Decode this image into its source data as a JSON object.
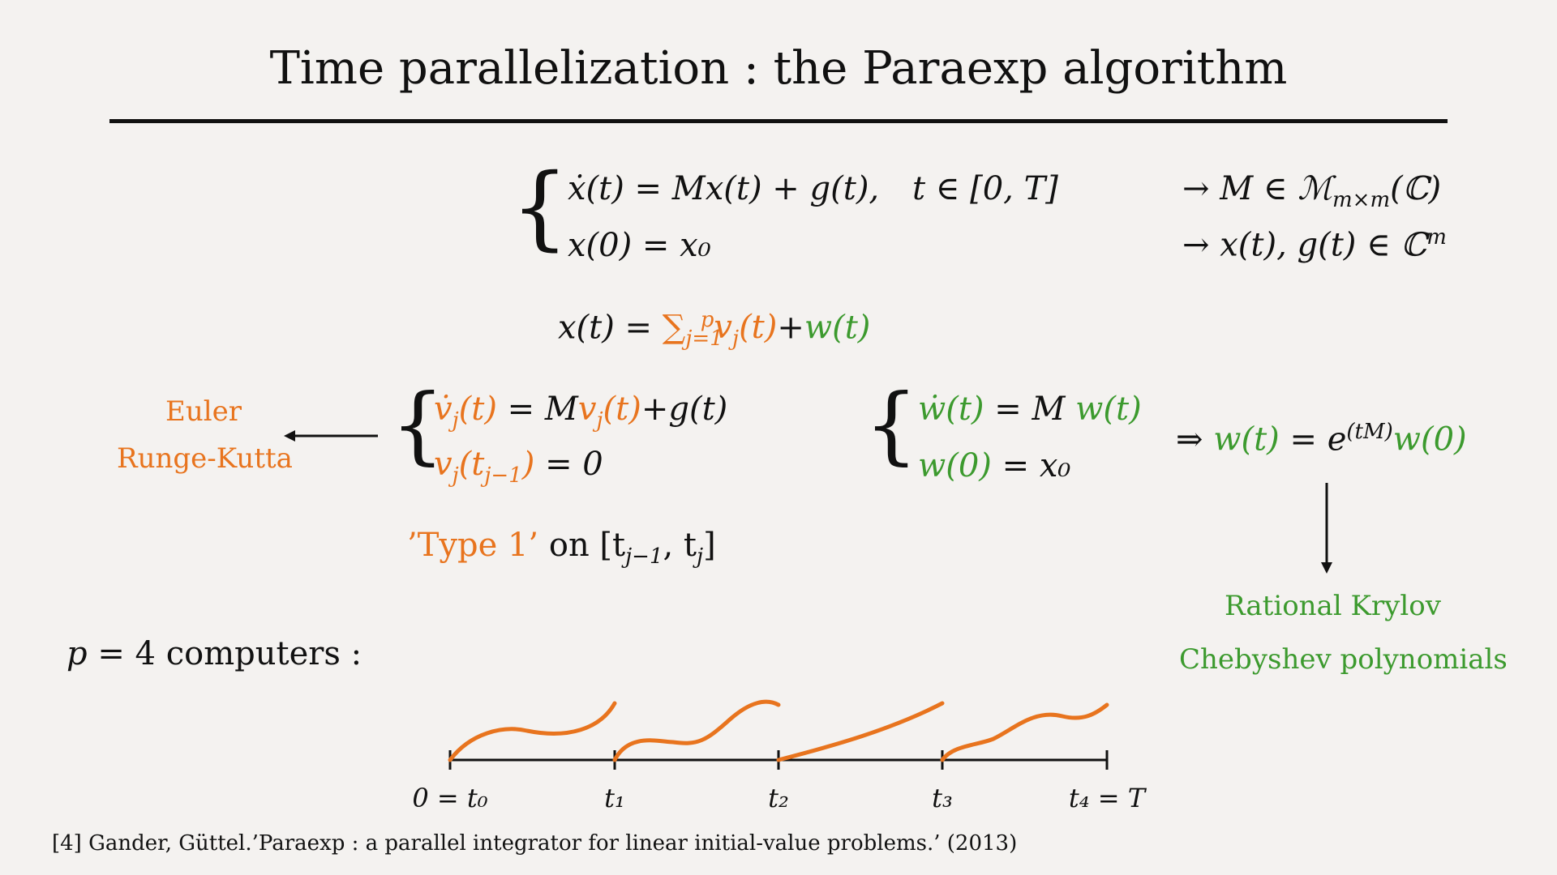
{
  "title": "Time parallelization : the Paraexp algorithm",
  "system": {
    "line1_lhs": "ẋ(t) = Mx(t) + g(t),",
    "line1_domain": "t ∈ [0, T]",
    "line2": "x(0) = x₀",
    "note1": "→ M ∈ ℳ",
    "note1_sub": "m×m",
    "note1_tail": "(ℂ)",
    "note2": "→ x(t), g(t) ∈ ℂ",
    "note2_sup": "m"
  },
  "decomposition": {
    "lhs": "x(t) =",
    "sum": "∑",
    "sum_sub": "j=1",
    "sum_sup": "p",
    "vj": "v",
    "vj_sub": "j",
    "vj_arg": "(t)",
    "plus": "+",
    "w": "w(t)"
  },
  "methods_left": {
    "line1": "Euler",
    "line2": "Runge-Kutta"
  },
  "type1_system": {
    "l1_a": "v̇",
    "l1_a_sub": "j",
    "l1_b": "(t)",
    "l1_c": " = M",
    "l1_d": "v",
    "l1_d_sub": "j",
    "l1_e": "(t)",
    "l1_f": "+g(t)",
    "l2_a": "v",
    "l2_a_sub": "j",
    "l2_b": "(t",
    "l2_b_sub": "j−1",
    "l2_c": ")",
    "l2_d": " = 0"
  },
  "type2_system": {
    "l1_a": "ẇ(t)",
    "l1_b": " = M ",
    "l1_c": "w(t)",
    "l2_a": "w(0)",
    "l2_b": " = x₀"
  },
  "solution": {
    "arrow": "⇒ ",
    "w": "w(t)",
    "eq": " = e",
    "sup": "(tM)",
    "w0": "w(0)"
  },
  "type1_label": {
    "label": "’Type 1’",
    "on": " on [t",
    "sub1": "j−1",
    "comma": ", t",
    "sub2": "j",
    "close": "]"
  },
  "methods_right": {
    "line1": "Rational Krylov",
    "line2": "Chebyshev polynomials"
  },
  "computers": {
    "p": "p",
    "text": " = 4 computers :"
  },
  "timeline": {
    "tick_labels": [
      "0 = t₀",
      "t₁",
      "t₂",
      "t₃",
      "t₄ = T"
    ]
  },
  "reference": "[4] Gander, Güttel.’Paraexp : a parallel integrator for linear initial-value problems.’ (2013)",
  "colors": {
    "orange": "#e8741e",
    "green": "#3c9a2e",
    "background": "#f4f2f0",
    "ink": "#111111"
  }
}
